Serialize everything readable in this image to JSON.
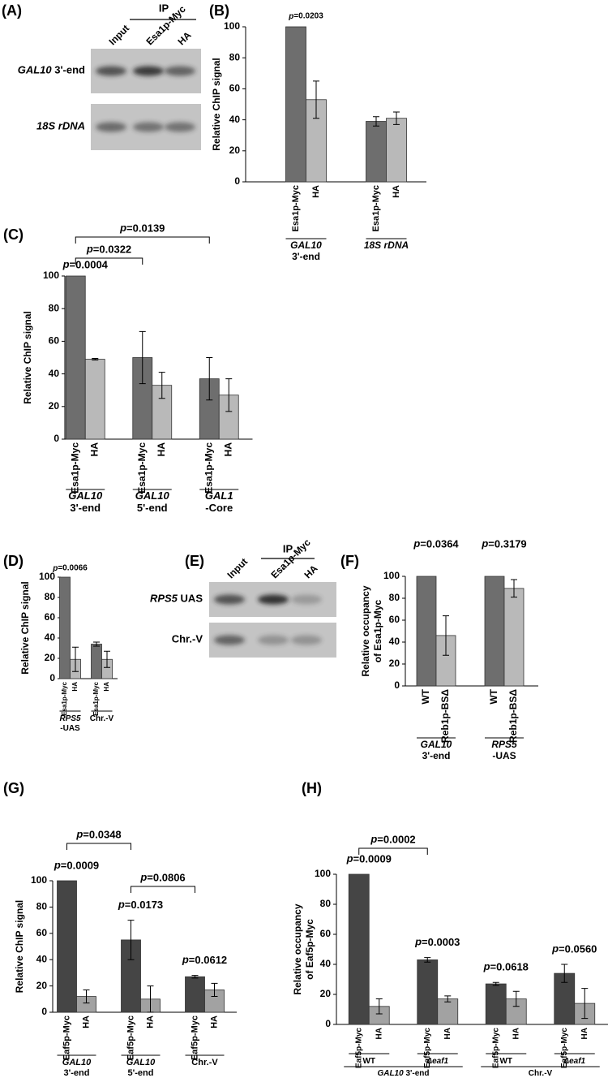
{
  "gels": [
    {
      "panel": "(A)",
      "ip_label": "IP",
      "lanes": [
        "Input",
        "Esa1p-Myc",
        "HA"
      ],
      "rows": [
        "GAL10 3'-end",
        "18S rDNA"
      ],
      "italic_terms": [
        "GAL10",
        "18S",
        "rDNA"
      ]
    },
    {
      "panel": "(E)",
      "ip_label": "IP",
      "lanes": [
        "Input",
        "Esa1p-Myc",
        "HA"
      ],
      "rows": [
        "RPS5 UAS",
        "Chr.-V"
      ],
      "italic_terms": [
        "RPS5"
      ]
    }
  ],
  "chart_data": [
    {
      "type": "bar",
      "panel": "(B)",
      "ylabel": "Relative ChIP signal",
      "ylim": [
        0,
        100
      ],
      "yticks": [
        0,
        20,
        40,
        60,
        80,
        100
      ],
      "categories": [
        "GAL10\n3'-end",
        "18S rDNA"
      ],
      "italic_terms": [
        "GAL10",
        "18S",
        "rDNA"
      ],
      "series": [
        {
          "name": "Esa1p-Myc",
          "color": "#6e6e6e",
          "values": [
            100,
            39
          ],
          "errors": [
            null,
            3
          ]
        },
        {
          "name": "HA",
          "color": "#b9b9b9",
          "values": [
            53,
            41
          ],
          "errors": [
            12,
            4
          ]
        }
      ],
      "p_labels": [
        "p=0.0203",
        null
      ]
    },
    {
      "type": "bar",
      "panel": "(C)",
      "ylabel": "Relative ChIP signal",
      "ylim": [
        0,
        100
      ],
      "yticks": [
        0,
        20,
        40,
        60,
        80,
        100
      ],
      "categories": [
        "GAL10\n3'-end",
        "GAL10\n5'-end",
        "GAL1\n-Core"
      ],
      "italic_terms": [
        "GAL10",
        "GAL1"
      ],
      "series": [
        {
          "name": "Esa1p-Myc",
          "color": "#6e6e6e",
          "values": [
            100,
            50,
            37
          ],
          "errors": [
            null,
            16,
            13
          ]
        },
        {
          "name": "HA",
          "color": "#b9b9b9",
          "values": [
            49,
            33,
            27
          ],
          "errors": [
            0.5,
            8,
            10
          ]
        }
      ],
      "p_labels": [
        "p=0.0004",
        null,
        null
      ],
      "brackets": [
        {
          "label": "p=0.0322",
          "from": 0,
          "to": 1
        },
        {
          "label": "p=0.0139",
          "from": 0,
          "to": 2
        }
      ]
    },
    {
      "type": "bar",
      "panel": "(D)",
      "ylabel": "Relative ChIP signal",
      "ylim": [
        0,
        100
      ],
      "yticks": [
        0,
        20,
        40,
        60,
        80,
        100
      ],
      "categories": [
        "RPS5\n-UAS",
        "Chr.-V"
      ],
      "italic_terms": [
        "RPS5"
      ],
      "series": [
        {
          "name": "Esa1p-Myc",
          "color": "#6e6e6e",
          "values": [
            100,
            34
          ],
          "errors": [
            null,
            2
          ]
        },
        {
          "name": "HA",
          "color": "#b9b9b9",
          "values": [
            19,
            19
          ],
          "errors": [
            12,
            8
          ]
        }
      ],
      "p_labels": [
        "p=0.0066",
        null
      ]
    },
    {
      "type": "bar",
      "panel": "(F)",
      "ylabel": [
        "Relative occupancy",
        "of Esa1p-Myc"
      ],
      "ylim": [
        0,
        100
      ],
      "yticks": [
        0,
        20,
        40,
        60,
        80,
        100
      ],
      "categories": [
        "GAL10\n3'-end",
        "RPS5\n-UAS"
      ],
      "italic_terms": [
        "GAL10",
        "RPS5"
      ],
      "series": [
        {
          "name": "WT",
          "color": "#6e6e6e",
          "values": [
            100,
            100
          ],
          "errors": [
            null,
            null
          ]
        },
        {
          "name": "Reb1p-BSΔ",
          "color": "#b9b9b9",
          "values": [
            46,
            89
          ],
          "errors": [
            18,
            8
          ]
        }
      ],
      "p_labels": [
        "p=0.0364",
        "p=0.3179"
      ]
    },
    {
      "type": "bar",
      "panel": "(G)",
      "ylabel": "Relative ChIP signal",
      "ylim": [
        0,
        100
      ],
      "yticks": [
        0,
        20,
        40,
        60,
        80,
        100
      ],
      "categories": [
        "GAL10\n3'-end",
        "GAL10\n5'-end",
        "Chr.-V"
      ],
      "italic_terms": [
        "GAL10"
      ],
      "series": [
        {
          "name": "Eaf5p-Myc",
          "color": "#454545",
          "values": [
            100,
            55,
            27
          ],
          "errors": [
            null,
            15,
            1
          ]
        },
        {
          "name": "HA",
          "color": "#a2a2a2",
          "values": [
            12,
            10,
            17
          ],
          "errors": [
            5,
            10,
            5
          ]
        }
      ],
      "p_labels": [
        "p=0.0009",
        "p=0.0173",
        "p=0.0612"
      ],
      "brackets": [
        {
          "label": "p=0.0348",
          "from": 0,
          "to": 1
        },
        {
          "label": "p=0.0806",
          "from": 1,
          "to": 2
        }
      ]
    },
    {
      "type": "bar",
      "panel": "(H)",
      "ylabel": [
        "Relative occupancy",
        "of Eaf5p-Myc"
      ],
      "ylim": [
        0,
        100
      ],
      "yticks": [
        0,
        20,
        40,
        60,
        80,
        100
      ],
      "categories": [
        "WT",
        "Δeaf1",
        "WT",
        "Δeaf1"
      ],
      "italic_terms": [
        "Δeaf1",
        "GAL10"
      ],
      "supergroups": [
        {
          "label": "GAL10 3'-end",
          "count": 2
        },
        {
          "label": "Chr.-V",
          "count": 2
        }
      ],
      "series": [
        {
          "name": "Eaf5p-Myc",
          "color": "#454545",
          "values": [
            100,
            43,
            27,
            34
          ],
          "errors": [
            null,
            1.5,
            1,
            6
          ]
        },
        {
          "name": "HA",
          "color": "#a2a2a2",
          "values": [
            12,
            17,
            17,
            14
          ],
          "errors": [
            5,
            2,
            5,
            10
          ]
        }
      ],
      "p_labels": [
        "p=0.0009",
        "p=0.0003",
        "p=0.0618",
        "p=0.0560"
      ],
      "brackets": [
        {
          "label": "p=0.0002",
          "from": 0,
          "to": 1
        }
      ]
    }
  ]
}
